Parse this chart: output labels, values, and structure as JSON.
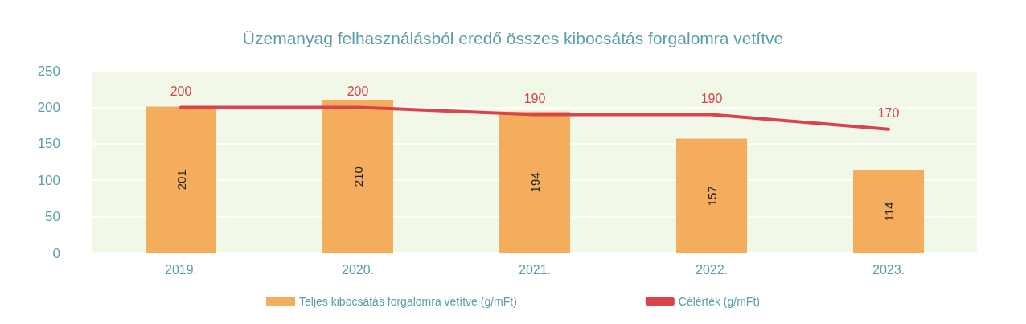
{
  "chart_data": {
    "type": "bar",
    "title": "Üzemanyag felhasználásból eredő összes kibocsátás forgalomra vetítve",
    "categories": [
      "2019.",
      "2020.",
      "2021.",
      "2022.",
      "2023."
    ],
    "series": [
      {
        "name": "Teljes kibocsátás forgalomra vetítve (g/mFt)",
        "color": "#f4ad5c",
        "values": [
          201,
          210,
          194,
          157,
          114
        ]
      },
      {
        "name": "Célérték (g/mFt)",
        "type": "line",
        "color": "#d9434b",
        "values": [
          200,
          200,
          190,
          190,
          170
        ]
      }
    ],
    "ylim": [
      0,
      250
    ],
    "yticks": [
      0,
      50,
      100,
      150,
      200,
      250
    ],
    "grid": "y",
    "legend": "bottom",
    "data_labels": true,
    "marker": "none",
    "line_style": "solid"
  }
}
